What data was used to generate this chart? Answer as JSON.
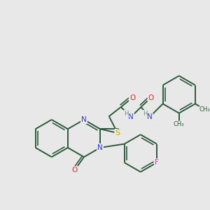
{
  "background_color": "#e8e8e8",
  "bond_color": "#2d5a3d",
  "bond_width": 1.4,
  "atom_colors": {
    "N": "#3333ff",
    "O": "#ff2020",
    "S": "#ccaa00",
    "F": "#cc44cc",
    "H": "#6a8a7a",
    "C": "#2d5a3d"
  },
  "font_size": 8,
  "figsize": [
    3.0,
    3.0
  ],
  "dpi": 100
}
